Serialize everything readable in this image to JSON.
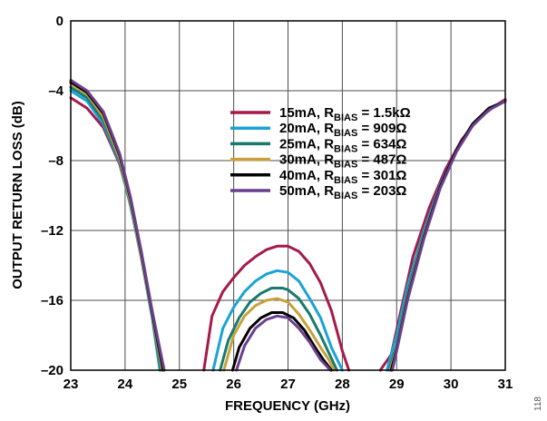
{
  "chart_data": {
    "type": "line",
    "xlabel": "FREQUENCY (GHz)",
    "ylabel": "OUTPUT RETURN LOSS (dB)",
    "xlim": [
      23,
      31
    ],
    "ylim": [
      -20,
      0
    ],
    "xticks": [
      23,
      24,
      25,
      26,
      27,
      28,
      29,
      30,
      31
    ],
    "yticks": [
      0,
      -4,
      -8,
      -12,
      -16,
      -20
    ],
    "ytick_labels": [
      "0",
      "–4",
      "–8",
      "–12",
      "–16",
      "–20"
    ],
    "grid": true,
    "legend_position": "upper-center",
    "figure_number": "118",
    "series": [
      {
        "name": "15mA, R_BIAS = 1.5kΩ",
        "legend": {
          "main": "15mA, R",
          "sub": "BIAS",
          "rest": " = 1.5kΩ"
        },
        "color": "#a6194b",
        "segments": [
          {
            "x": [
              23.0,
              23.3,
              23.6,
              23.9,
              24.1,
              24.3,
              24.45,
              24.6,
              24.72
            ],
            "y": [
              -4.4,
              -5.0,
              -6.1,
              -8.2,
              -10.5,
              -13.3,
              -15.8,
              -18.3,
              -20.0
            ]
          },
          {
            "x": [
              25.45,
              25.6,
              25.8,
              26.0,
              26.2,
              26.4,
              26.6,
              26.8,
              27.0,
              27.2,
              27.4,
              27.6,
              27.8,
              28.0,
              28.12
            ],
            "y": [
              -20.0,
              -16.9,
              -15.5,
              -14.7,
              -14.0,
              -13.5,
              -13.1,
              -12.9,
              -12.9,
              -13.2,
              -13.9,
              -15.0,
              -16.6,
              -18.9,
              -20.0
            ]
          },
          {
            "x": [
              28.7,
              28.9,
              29.1,
              29.3,
              29.6,
              29.9,
              30.2,
              30.5,
              30.8,
              31.0
            ],
            "y": [
              -20.0,
              -19.1,
              -16.3,
              -13.5,
              -10.7,
              -8.5,
              -6.8,
              -5.6,
              -4.9,
              -4.5
            ]
          }
        ]
      },
      {
        "name": "20mA, R_BIAS = 909Ω",
        "legend": {
          "main": "20mA, R",
          "sub": "BIAS",
          "rest": " = 909Ω"
        },
        "color": "#1aa3d6",
        "segments": [
          {
            "x": [
              23.0,
              23.3,
              23.6,
              23.9,
              24.1,
              24.3,
              24.5,
              24.64
            ],
            "y": [
              -4.0,
              -4.6,
              -5.9,
              -8.1,
              -10.6,
              -13.6,
              -17.0,
              -20.0
            ]
          },
          {
            "x": [
              25.62,
              25.8,
              26.0,
              26.2,
              26.4,
              26.6,
              26.8,
              27.0,
              27.2,
              27.4,
              27.6,
              27.8,
              28.0
            ],
            "y": [
              -20.0,
              -17.6,
              -16.4,
              -15.5,
              -14.9,
              -14.5,
              -14.3,
              -14.4,
              -14.9,
              -15.9,
              -17.0,
              -18.7,
              -20.0
            ]
          },
          {
            "x": [
              28.82,
              29.0,
              29.2,
              29.5,
              29.8,
              30.1,
              30.4,
              30.7,
              31.0
            ],
            "y": [
              -20.0,
              -18.0,
              -15.2,
              -12.0,
              -9.4,
              -7.4,
              -5.9,
              -5.0,
              -4.6
            ]
          }
        ]
      },
      {
        "name": "25mA, R_BIAS = 634Ω",
        "legend": {
          "main": "25mA, R",
          "sub": "BIAS",
          "rest": " = 634Ω"
        },
        "color": "#177a6e",
        "segments": [
          {
            "x": [
              23.0,
              23.3,
              23.6,
              23.9,
              24.1,
              24.3,
              24.5,
              24.66
            ],
            "y": [
              -3.8,
              -4.4,
              -5.7,
              -8.0,
              -10.5,
              -13.5,
              -16.9,
              -20.0
            ]
          },
          {
            "x": [
              25.75,
              25.9,
              26.1,
              26.3,
              26.5,
              26.7,
              26.9,
              27.0,
              27.2,
              27.4,
              27.6,
              27.75,
              27.9
            ],
            "y": [
              -20.0,
              -18.3,
              -17.0,
              -16.1,
              -15.6,
              -15.3,
              -15.3,
              -15.4,
              -15.9,
              -16.8,
              -18.0,
              -19.0,
              -20.0
            ]
          },
          {
            "x": [
              28.86,
              29.0,
              29.2,
              29.5,
              29.8,
              30.1,
              30.4,
              30.7,
              31.0
            ],
            "y": [
              -20.0,
              -18.6,
              -15.6,
              -12.2,
              -9.5,
              -7.4,
              -5.9,
              -5.0,
              -4.6
            ]
          }
        ]
      },
      {
        "name": "30mA, R_BIAS = 487Ω",
        "legend": {
          "main": "30mA, R",
          "sub": "BIAS",
          "rest": " = 487Ω"
        },
        "color": "#c9a13b",
        "segments": [
          {
            "x": [
              23.0,
              23.3,
              23.6,
              23.9,
              24.1,
              24.3,
              24.5,
              24.68
            ],
            "y": [
              -3.6,
              -4.2,
              -5.5,
              -7.9,
              -10.4,
              -13.5,
              -16.8,
              -20.0
            ]
          },
          {
            "x": [
              25.82,
              26.0,
              26.2,
              26.4,
              26.6,
              26.8,
              27.0,
              27.2,
              27.4,
              27.6,
              27.75,
              27.85
            ],
            "y": [
              -20.0,
              -18.0,
              -16.9,
              -16.3,
              -16.0,
              -15.9,
              -16.1,
              -16.8,
              -17.7,
              -18.7,
              -19.4,
              -20.0
            ]
          },
          {
            "x": [
              28.88,
              29.0,
              29.2,
              29.5,
              29.8,
              30.1,
              30.4,
              30.7,
              31.0
            ],
            "y": [
              -20.0,
              -18.7,
              -15.8,
              -12.3,
              -9.5,
              -7.4,
              -5.9,
              -5.0,
              -4.6
            ]
          }
        ]
      },
      {
        "name": "40mA, R_BIAS = 301Ω",
        "legend": {
          "main": "40mA, R",
          "sub": "BIAS",
          "rest": " = 301Ω"
        },
        "color": "#000000",
        "segments": [
          {
            "x": [
              23.0,
              23.3,
              23.6,
              23.9,
              24.1,
              24.3,
              24.5,
              24.7
            ],
            "y": [
              -3.5,
              -4.1,
              -5.3,
              -7.7,
              -10.2,
              -13.3,
              -16.7,
              -20.0
            ]
          },
          {
            "x": [
              25.98,
              26.1,
              26.3,
              26.5,
              26.7,
              26.9,
              27.1,
              27.3,
              27.5,
              27.65,
              27.8
            ],
            "y": [
              -20.0,
              -18.7,
              -17.6,
              -17.0,
              -16.7,
              -16.7,
              -17.0,
              -17.7,
              -18.7,
              -19.4,
              -20.0
            ]
          },
          {
            "x": [
              28.9,
              29.0,
              29.2,
              29.5,
              29.8,
              30.1,
              30.4,
              30.7,
              31.0
            ],
            "y": [
              -20.0,
              -18.8,
              -15.9,
              -12.4,
              -9.5,
              -7.4,
              -5.9,
              -5.0,
              -4.6
            ]
          }
        ]
      },
      {
        "name": "50mA, R_BIAS = 203Ω",
        "legend": {
          "main": "50mA, R",
          "sub": "BIAS",
          "rest": " = 203Ω"
        },
        "color": "#6b3f8e",
        "segments": [
          {
            "x": [
              23.0,
              23.3,
              23.6,
              23.9,
              24.1,
              24.3,
              24.5,
              24.72
            ],
            "y": [
              -3.4,
              -4.0,
              -5.2,
              -7.6,
              -10.1,
              -13.2,
              -16.6,
              -20.0
            ]
          },
          {
            "x": [
              26.05,
              26.2,
              26.4,
              26.6,
              26.8,
              27.0,
              27.2,
              27.4,
              27.6,
              27.78
            ],
            "y": [
              -20.0,
              -18.6,
              -17.6,
              -17.1,
              -16.9,
              -17.0,
              -17.6,
              -18.4,
              -19.4,
              -20.0
            ]
          },
          {
            "x": [
              28.92,
              29.0,
              29.2,
              29.5,
              29.8,
              30.1,
              30.4,
              30.7,
              31.0
            ],
            "y": [
              -20.0,
              -18.9,
              -16.0,
              -12.5,
              -9.6,
              -7.5,
              -6.0,
              -5.1,
              -4.6
            ]
          }
        ]
      }
    ]
  }
}
